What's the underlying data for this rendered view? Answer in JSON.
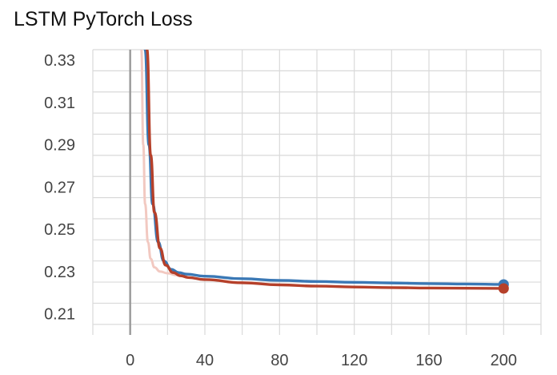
{
  "chart_data": {
    "type": "line",
    "title": "LSTM PyTorch Loss",
    "xlabel": "",
    "ylabel": "",
    "xlim": [
      -20,
      220
    ],
    "ylim": [
      0.2,
      0.335
    ],
    "xticks": [
      0,
      40,
      80,
      120,
      160,
      200
    ],
    "yticks": [
      0.21,
      0.23,
      0.25,
      0.27,
      0.29,
      0.31,
      0.33
    ],
    "ytick_labels": [
      "0.21",
      "0.23",
      "0.25",
      "0.27",
      "0.29",
      "0.31",
      "0.33"
    ],
    "grid": true,
    "legend": "none",
    "series": [
      {
        "color": "#3a78b5",
        "x": [
          8,
          10,
          12,
          15,
          18,
          22,
          26,
          30,
          40,
          60,
          80,
          100,
          120,
          140,
          160,
          180,
          200
        ],
        "y": [
          0.335,
          0.29,
          0.262,
          0.244,
          0.235,
          0.231,
          0.2295,
          0.2288,
          0.2278,
          0.2266,
          0.2258,
          0.2253,
          0.2249,
          0.2246,
          0.2243,
          0.2241,
          0.2239
        ]
      },
      {
        "color": "#b5402a",
        "x": [
          9,
          11,
          13,
          16,
          19,
          23,
          27,
          31,
          40,
          60,
          80,
          100,
          120,
          140,
          160,
          180,
          200
        ],
        "y": [
          0.335,
          0.285,
          0.258,
          0.241,
          0.233,
          0.2295,
          0.228,
          0.2272,
          0.2262,
          0.2247,
          0.2237,
          0.2231,
          0.2227,
          0.2224,
          0.2222,
          0.2221,
          0.222
        ]
      },
      {
        "color": "#f2c9c1",
        "x": [
          6,
          7,
          8,
          9.5,
          11,
          13,
          16,
          20,
          25,
          30
        ],
        "y": [
          0.335,
          0.29,
          0.262,
          0.244,
          0.236,
          0.232,
          0.23,
          0.2292,
          0.2283,
          0.2278
        ]
      }
    ]
  }
}
